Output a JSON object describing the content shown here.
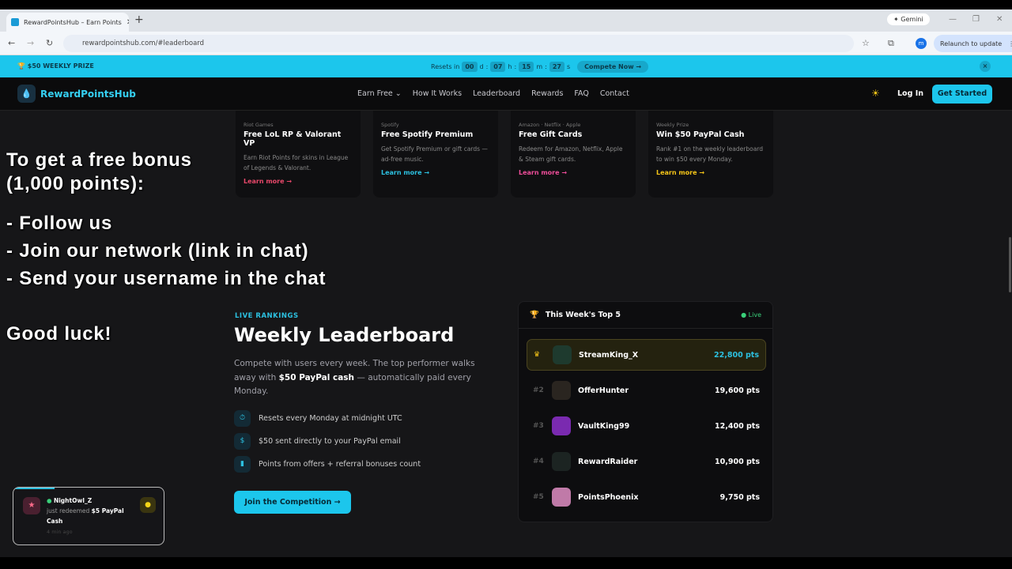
{
  "browser": {
    "tab_title": "RewardPointsHub – Earn Points",
    "url": "rewardpointshub.com/#leaderboard",
    "gemini": "Gemini",
    "relaunch": "Relaunch to update",
    "profile_initial": "m"
  },
  "banner": {
    "prize": "$50 WEEKLY PRIZE",
    "resets_label": "Resets in",
    "days": "00",
    "hours": "07",
    "minutes": "15",
    "seconds": "27",
    "d": "d",
    "h": "h",
    "m": "m",
    "s": "s",
    "cta": "Compete Now →"
  },
  "header": {
    "logo": "RewardPointsHub",
    "nav": [
      "Earn Free ⌄",
      "How It Works",
      "Leaderboard",
      "Rewards",
      "FAQ",
      "Contact"
    ],
    "login": "Log In",
    "get_started": "Get Started"
  },
  "cards": [
    {
      "category": "Riot Games",
      "title": "Free LoL RP & Valorant VP",
      "desc": "Earn Riot Points for skins in League of Legends & Valorant.",
      "link": "Learn more →",
      "color": "#e8486a"
    },
    {
      "category": "Spotify",
      "title": "Free Spotify Premium",
      "desc": "Get Spotify Premium or gift cards — ad-free music.",
      "link": "Learn more →",
      "color": "#2cc0e0"
    },
    {
      "category": "Amazon · Netflix · Apple",
      "title": "Free Gift Cards",
      "desc": "Redeem for Amazon, Netflix, Apple & Steam gift cards.",
      "link": "Learn more →",
      "color": "#ee4d9a"
    },
    {
      "category": "Weekly Prize",
      "title": "Win $50 PayPal Cash",
      "desc": "Rank #1 on the weekly leaderboard to win $50 every Monday.",
      "link": "Learn more →",
      "color": "#f5c518"
    }
  ],
  "section": {
    "eyebrow": "LIVE RANKINGS",
    "title": "Weekly Leaderboard",
    "desc_pre": "Compete with users every week. The top performer walks away with ",
    "desc_bold": "$50 PayPal cash",
    "desc_post": " — automatically paid every Monday.",
    "features": [
      "Resets every Monday at midnight UTC",
      "$50 sent directly to your PayPal email",
      "Points from offers + referral bonuses count"
    ],
    "cta": "Join the Competition →"
  },
  "leaderboard": {
    "title": "This Week's Top 5",
    "live": "Live",
    "rows": [
      {
        "rank": "",
        "name": "StreamKing_X",
        "pts": "22,800 pts"
      },
      {
        "rank": "#2",
        "name": "OfferHunter",
        "pts": "19,600 pts"
      },
      {
        "rank": "#3",
        "name": "VaultKing99",
        "pts": "12,400 pts"
      },
      {
        "rank": "#4",
        "name": "RewardRaider",
        "pts": "10,900 pts"
      },
      {
        "rank": "#5",
        "name": "PointsPhoenix",
        "pts": "9,750 pts"
      }
    ]
  },
  "overlay": [
    "To get a free bonus (1,000 points):",
    "- Follow us",
    "- Join our network (link in chat)",
    "- Send your username in the chat",
    "Good luck!"
  ],
  "toast": {
    "user": "NightOwl_Z",
    "action": "just redeemed ",
    "item": "$5 PayPal Cash",
    "time": "4 min ago"
  }
}
